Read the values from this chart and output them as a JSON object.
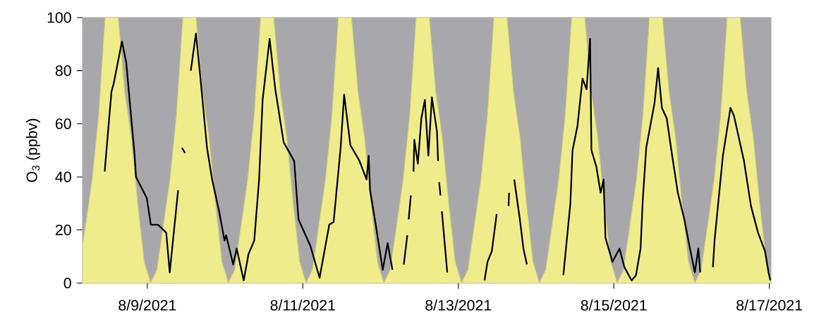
{
  "chart_data": {
    "type": "line",
    "ylabel": "O$_{3}$ (ppbv)",
    "xlim": [
      "2021-08-08T04:00",
      "2021-08-17T00:30"
    ],
    "ylim": [
      0,
      100
    ],
    "xticks": [
      {
        "value": "2021-08-09",
        "label": "8/9/2021"
      },
      {
        "value": "2021-08-11",
        "label": "8/11/2021"
      },
      {
        "value": "2021-08-13",
        "label": "8/13/2021"
      },
      {
        "value": "2021-08-15",
        "label": "8/15/2021"
      },
      {
        "value": "2021-08-17",
        "label": "8/17/2021"
      }
    ],
    "yticks": [
      0,
      20,
      40,
      60,
      80,
      100
    ],
    "series": [
      {
        "type": "area",
        "color": "#f0ec8c",
        "x": [
          "2021-08-08T04:00",
          "2021-08-08T05:00",
          "2021-08-08T07:00",
          "2021-08-08T09:00",
          "2021-08-08T11:00",
          "2021-08-08T15:00",
          "2021-08-08T17:00",
          "2021-08-08T19:00",
          "2021-08-08T21:00",
          "2021-08-08T23:00",
          "2021-08-09T01:00",
          "2021-08-09T03:00",
          "2021-08-09T05:00",
          "2021-08-09T07:00",
          "2021-08-09T09:00",
          "2021-08-09T11:00",
          "2021-08-09T15:00",
          "2021-08-09T17:00",
          "2021-08-09T19:00",
          "2021-08-09T21:00",
          "2021-08-09T23:00",
          "2021-08-10T01:00",
          "2021-08-10T03:00",
          "2021-08-10T05:00",
          "2021-08-10T07:00",
          "2021-08-10T09:00",
          "2021-08-10T11:00",
          "2021-08-10T15:00",
          "2021-08-10T17:00",
          "2021-08-10T19:00",
          "2021-08-10T21:00",
          "2021-08-10T23:00",
          "2021-08-11T01:00",
          "2021-08-11T03:00",
          "2021-08-11T05:00",
          "2021-08-11T07:00",
          "2021-08-11T09:00",
          "2021-08-11T11:00",
          "2021-08-11T15:00",
          "2021-08-11T17:00",
          "2021-08-11T19:00",
          "2021-08-11T21:00",
          "2021-08-11T23:00",
          "2021-08-12T01:00",
          "2021-08-12T03:00",
          "2021-08-12T05:00",
          "2021-08-12T07:00",
          "2021-08-12T09:00",
          "2021-08-12T11:00",
          "2021-08-12T15:00",
          "2021-08-12T17:00",
          "2021-08-12T19:00",
          "2021-08-12T21:00",
          "2021-08-12T23:00",
          "2021-08-13T01:00",
          "2021-08-13T03:00",
          "2021-08-13T05:00",
          "2021-08-13T07:00",
          "2021-08-13T09:00",
          "2021-08-13T11:00",
          "2021-08-13T15:00",
          "2021-08-13T17:00",
          "2021-08-13T19:00",
          "2021-08-13T21:00",
          "2021-08-13T23:00",
          "2021-08-14T01:00",
          "2021-08-14T03:00",
          "2021-08-14T05:00",
          "2021-08-14T07:00",
          "2021-08-14T09:00",
          "2021-08-14T11:00",
          "2021-08-14T15:00",
          "2021-08-14T17:00",
          "2021-08-14T19:00",
          "2021-08-14T21:00",
          "2021-08-14T23:00",
          "2021-08-15T01:00",
          "2021-08-15T03:00",
          "2021-08-15T05:00",
          "2021-08-15T07:00",
          "2021-08-15T09:00",
          "2021-08-15T11:00",
          "2021-08-15T15:00",
          "2021-08-15T17:00",
          "2021-08-15T19:00",
          "2021-08-15T21:00",
          "2021-08-15T23:00",
          "2021-08-16T01:00",
          "2021-08-16T03:00",
          "2021-08-16T05:00",
          "2021-08-16T07:00",
          "2021-08-16T09:00",
          "2021-08-16T11:00",
          "2021-08-16T15:00",
          "2021-08-16T17:00",
          "2021-08-16T19:00",
          "2021-08-16T21:00",
          "2021-08-16T23:00",
          "2021-08-17T00:30"
        ],
        "values": [
          14,
          22,
          39,
          63,
          100,
          100,
          72,
          55,
          30,
          8,
          0,
          5,
          22,
          39,
          63,
          100,
          100,
          72,
          55,
          30,
          8,
          0,
          5,
          22,
          39,
          63,
          100,
          100,
          72,
          55,
          30,
          8,
          0,
          5,
          22,
          39,
          63,
          100,
          100,
          72,
          55,
          30,
          8,
          0,
          5,
          22,
          39,
          63,
          100,
          100,
          72,
          55,
          30,
          8,
          0,
          5,
          22,
          39,
          63,
          100,
          100,
          72,
          55,
          30,
          8,
          0,
          5,
          22,
          39,
          63,
          100,
          100,
          72,
          55,
          30,
          8,
          0,
          5,
          22,
          39,
          63,
          100,
          100,
          72,
          55,
          30,
          8,
          0,
          5,
          22,
          39,
          63,
          100,
          100,
          72,
          55,
          30,
          8,
          2
        ]
      },
      {
        "color": "#000000",
        "x": [
          "2021-08-08T10:50",
          "2021-08-08T12:55",
          "2021-08-08T13:35",
          "2021-08-08T16:10",
          "2021-08-08T17:30",
          "2021-08-08T20:05",
          "2021-08-08T20:30",
          "2021-08-08T23:50",
          "2021-08-09T01:05",
          "2021-08-09T03:15",
          "2021-08-09T05:50",
          "2021-08-09T06:55",
          "2021-08-09T09:30",
          "2021-08-09T09:45",
          "2021-08-09T10:40",
          "2021-08-09T11:40",
          "2021-08-09T12:00",
          "2021-08-09T13:25",
          "2021-08-09T15:00",
          "2021-08-09T16:15",
          "2021-08-09T18:25",
          "2021-08-09T20:00",
          "2021-08-09T22:10",
          "2021-08-09T23:50",
          "2021-08-10T00:20",
          "2021-08-10T02:30",
          "2021-08-10T03:35",
          "2021-08-10T05:45",
          "2021-08-10T07:15",
          "2021-08-10T09:00",
          "2021-08-10T10:30",
          "2021-08-10T11:35",
          "2021-08-10T13:45",
          "2021-08-10T15:30",
          "2021-08-10T18:05",
          "2021-08-10T21:20",
          "2021-08-10T22:40",
          "2021-08-11T02:20",
          "2021-08-11T05:10",
          "2021-08-11T08:10",
          "2021-08-11T09:30",
          "2021-08-11T11:40",
          "2021-08-11T12:45",
          "2021-08-11T14:40",
          "2021-08-11T17:30",
          "2021-08-11T19:40",
          "2021-08-11T20:20",
          "2021-08-11T20:45",
          "2021-08-11T22:30",
          "2021-08-12T00:40",
          "2021-08-12T02:10",
          "2021-08-12T03:40",
          "2021-08-12T04:30",
          "2021-08-12T07:10",
          "2021-08-12T08:15",
          "2021-08-12T08:30",
          "2021-08-12T08:40",
          "2021-08-12T09:20",
          "2021-08-12T09:40",
          "2021-08-12T10:10",
          "2021-08-12T10:25",
          "2021-08-12T11:30",
          "2021-08-12T12:35",
          "2021-08-12T13:40",
          "2021-08-12T14:45",
          "2021-08-12T15:50",
          "2021-08-12T17:25",
          "2021-08-12T17:45",
          "2021-08-12T17:55",
          "2021-08-12T18:05",
          "2021-08-12T18:30",
          "2021-08-12T18:45",
          "2021-08-12T18:55",
          "2021-08-12T20:35",
          "2021-08-12T21:00",
          "2021-08-13T08:05",
          "2021-08-13T09:00",
          "2021-08-13T10:20",
          "2021-08-13T11:50",
          "2021-08-13T12:30",
          "2021-08-13T15:30",
          "2021-08-13T15:40",
          "2021-08-13T16:00",
          "2021-08-13T17:15",
          "2021-08-13T19:00",
          "2021-08-13T20:05",
          "2021-08-13T21:10",
          "2021-08-13T22:00",
          "2021-08-14T08:25",
          "2021-08-14T10:35",
          "2021-08-14T11:15",
          "2021-08-14T12:45",
          "2021-08-14T14:20",
          "2021-08-14T15:35",
          "2021-08-14T16:40",
          "2021-08-14T17:05",
          "2021-08-14T18:35",
          "2021-08-14T19:55",
          "2021-08-14T20:50",
          "2021-08-14T21:25",
          "2021-08-14T23:35",
          "2021-08-15T01:45",
          "2021-08-15T03:15",
          "2021-08-15T05:30",
          "2021-08-15T06:50",
          "2021-08-15T08:15",
          "2021-08-15T08:55",
          "2021-08-15T10:00",
          "2021-08-15T12:35",
          "2021-08-15T13:40",
          "2021-08-15T14:50",
          "2021-08-15T16:20",
          "2021-08-15T18:00",
          "2021-08-15T19:45",
          "2021-08-15T21:45",
          "2021-08-15T23:30",
          "2021-08-16T01:00",
          "2021-08-16T02:05",
          "2021-08-16T02:40",
          "2021-08-16T03:30",
          "2021-08-16T06:35",
          "2021-08-16T07:05",
          "2021-08-16T09:40",
          "2021-08-16T12:00",
          "2021-08-16T13:05",
          "2021-08-16T14:10",
          "2021-08-16T16:10",
          "2021-08-16T18:20",
          "2021-08-16T20:30",
          "2021-08-16T22:40",
          "2021-08-16T23:45",
          "2021-08-17T00:20"
        ],
        "values": [
          42,
          72,
          75,
          91,
          83,
          48,
          40,
          32,
          22,
          22,
          19,
          4,
          35,
          null,
          51,
          49,
          null,
          80,
          94,
          79,
          51,
          39,
          27,
          16,
          18,
          7,
          13,
          1,
          11,
          16,
          39,
          69,
          92,
          73,
          53,
          46,
          24,
          14,
          2,
          22,
          23,
          51,
          71,
          52,
          46,
          39,
          48,
          35,
          22,
          5,
          15,
          5,
          null,
          7,
          18,
          null,
          24,
          33,
          null,
          42,
          54,
          45,
          62,
          69,
          48,
          70,
          57,
          46,
          null,
          38,
          33,
          null,
          27,
          4,
          null,
          1,
          8,
          12,
          26,
          null,
          29,
          34,
          null,
          39,
          24,
          13,
          7,
          null,
          3,
          30,
          50,
          59,
          77,
          73,
          92,
          50,
          44,
          34,
          39,
          17,
          8,
          13,
          6,
          1,
          3,
          13,
          31,
          51,
          68,
          81,
          66,
          62,
          48,
          34,
          24,
          13,
          4,
          13,
          4,
          null,
          6,
          16,
          48,
          66,
          63,
          57,
          46,
          29,
          19,
          12,
          4,
          1
        ]
      }
    ]
  }
}
